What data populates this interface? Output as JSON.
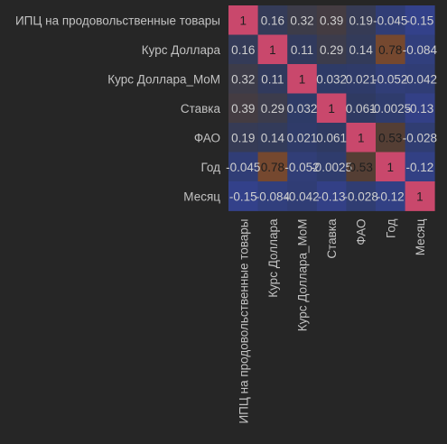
{
  "chart_data": {
    "type": "heatmap",
    "title": "",
    "xlabel": "",
    "ylabel": "",
    "rows": [
      "ИПЦ на продовольственные товары",
      "Курс Доллара",
      "Курс Доллара_MoM",
      "Ставка",
      "ФАО",
      "Год",
      "Месяц"
    ],
    "columns": [
      "ИПЦ на продовольственные товары",
      "Курс Доллара",
      "Курс Доллара_MoM",
      "Ставка",
      "ФАО",
      "Год",
      "Месяц"
    ],
    "values": [
      [
        1,
        0.16,
        0.32,
        0.39,
        0.19,
        -0.045,
        -0.15
      ],
      [
        0.16,
        1,
        0.11,
        0.29,
        0.14,
        0.78,
        -0.084
      ],
      [
        0.32,
        0.11,
        1,
        0.032,
        0.021,
        -0.052,
        -0.042
      ],
      [
        0.39,
        0.29,
        0.032,
        1,
        0.061,
        -0.0025,
        -0.13
      ],
      [
        0.19,
        0.14,
        0.021,
        0.061,
        1,
        0.53,
        -0.028
      ],
      [
        -0.045,
        0.78,
        -0.052,
        -0.0025,
        0.53,
        1,
        -0.12
      ],
      [
        -0.15,
        -0.084,
        -0.042,
        -0.13,
        -0.028,
        -0.12,
        1
      ]
    ],
    "cell_labels": [
      [
        "1",
        "0.16",
        "0.32",
        "0.39",
        "0.19",
        "-0.045",
        "-0.15"
      ],
      [
        "0.16",
        "1",
        "0.11",
        "0.29",
        "0.14",
        "0.78",
        "-0.084"
      ],
      [
        "0.32",
        "0.11",
        "1",
        "0.032",
        "0.021",
        "-0.052",
        "-0.042"
      ],
      [
        "0.39",
        "0.29",
        "0.032",
        "1",
        "0.061",
        "-0.0025",
        "-0.13"
      ],
      [
        "0.19",
        "0.14",
        "0.021",
        "0.061",
        "1",
        "0.53",
        "-0.028"
      ],
      [
        "-0.045",
        "0.78",
        "-0.052",
        "-0.0025",
        "0.53",
        "1",
        "-0.12"
      ],
      [
        "-0.15",
        "-0.084",
        "-0.042",
        "-0.13",
        "-0.028",
        "-0.12",
        "1"
      ]
    ],
    "colorbar": false,
    "colors": {
      "background": "#262626",
      "diagonal": "#c9486c",
      "high": "#75482f",
      "mid_high": "#543e34",
      "mid": "#3f3c46",
      "low": "#2e3a63",
      "negative": "#33418a",
      "tick_text": "#c2c2c2",
      "cell_text_dark": "#1e1e1e",
      "cell_text_light": "#cfcfcf"
    }
  }
}
